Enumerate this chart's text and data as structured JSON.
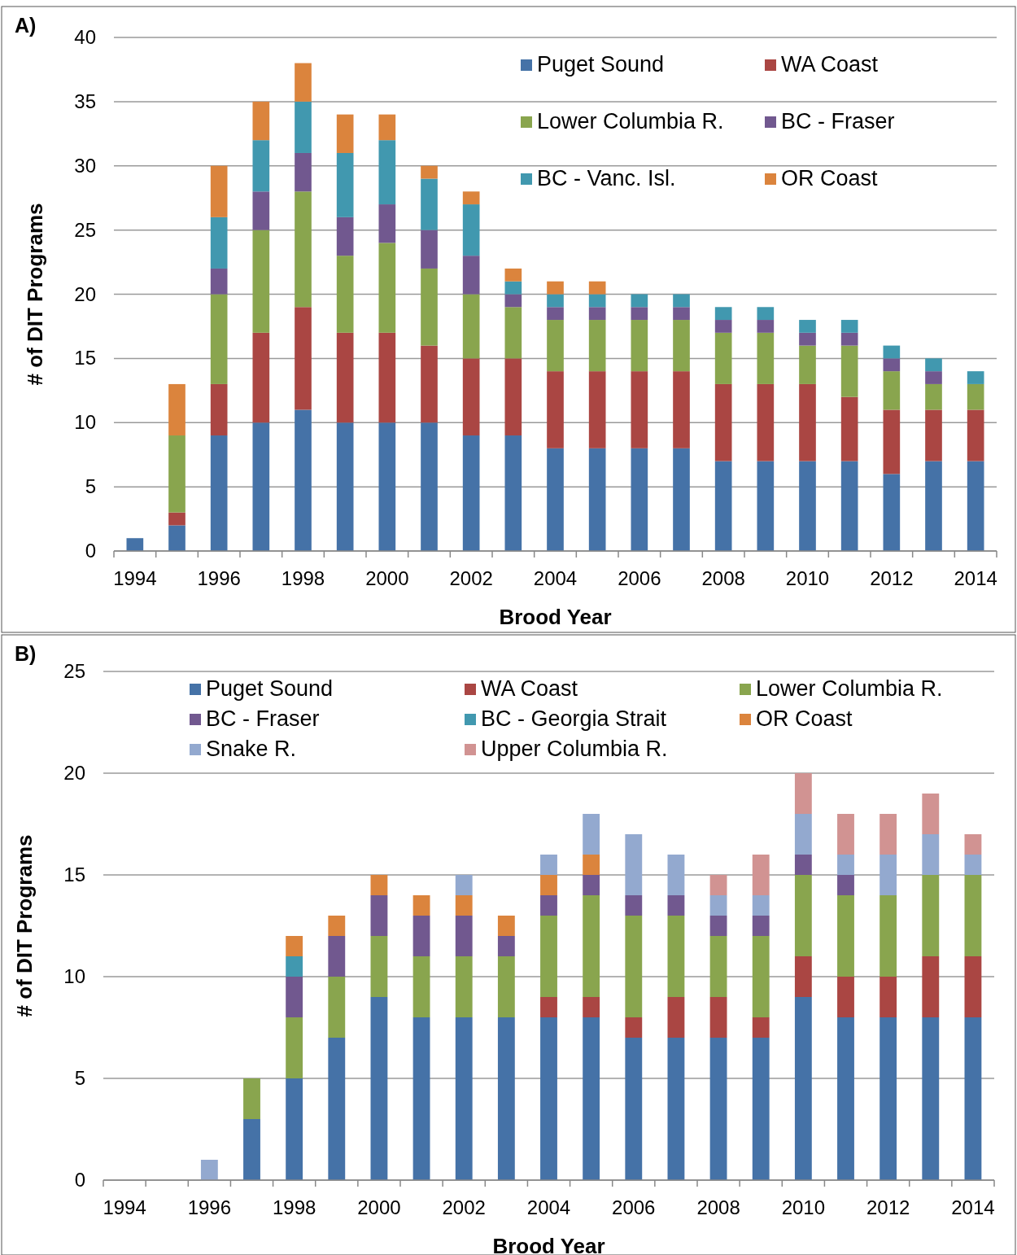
{
  "chart_data": [
    {
      "type": "bar",
      "stacked": true,
      "annotations": [
        "A)"
      ],
      "xlabel": "Brood Year",
      "ylabel": "# of DIT Programs",
      "ylim": [
        0,
        40
      ],
      "yticks": [
        0,
        5,
        10,
        15,
        20,
        25,
        30,
        35,
        40
      ],
      "grid": "y",
      "legend": "top right",
      "categories": [
        "1994",
        null,
        "1996",
        null,
        "1998",
        null,
        "2000",
        null,
        "2002",
        null,
        "2004",
        null,
        "2006",
        null,
        "2008",
        null,
        "2010",
        null,
        "2012",
        null,
        "2014"
      ],
      "series": [
        {
          "name": "Puget Sound",
          "color": "#4572a7",
          "values": [
            1,
            2,
            9,
            10,
            11,
            10,
            10,
            10,
            9,
            9,
            8,
            8,
            8,
            8,
            7,
            7,
            7,
            7,
            6,
            7,
            7
          ]
        },
        {
          "name": "WA Coast",
          "color": "#aa4643",
          "values": [
            0,
            1,
            4,
            7,
            8,
            7,
            7,
            6,
            6,
            6,
            6,
            6,
            6,
            6,
            6,
            6,
            6,
            5,
            5,
            4,
            4
          ]
        },
        {
          "name": "Lower Columbia R.",
          "color": "#89a54e",
          "values": [
            0,
            6,
            7,
            8,
            9,
            6,
            7,
            6,
            5,
            4,
            4,
            4,
            4,
            4,
            4,
            4,
            3,
            4,
            3,
            2,
            2
          ]
        },
        {
          "name": "BC - Fraser",
          "color": "#71588f",
          "values": [
            0,
            0,
            2,
            3,
            3,
            3,
            3,
            3,
            3,
            1,
            1,
            1,
            1,
            1,
            1,
            1,
            1,
            1,
            1,
            1,
            0
          ]
        },
        {
          "name": "BC - Vanc. Isl.",
          "color": "#4198af",
          "values": [
            0,
            0,
            4,
            4,
            4,
            5,
            5,
            4,
            4,
            1,
            1,
            1,
            1,
            1,
            1,
            1,
            1,
            1,
            1,
            1,
            1
          ]
        },
        {
          "name": "OR Coast",
          "color": "#db843d",
          "values": [
            0,
            4,
            4,
            3,
            3,
            3,
            2,
            1,
            1,
            1,
            1,
            1,
            0,
            0,
            0,
            0,
            0,
            0,
            0,
            0,
            0
          ]
        }
      ]
    },
    {
      "type": "bar",
      "stacked": true,
      "annotations": [
        "B)"
      ],
      "xlabel": "Brood Year",
      "ylabel": "# of DIT Programs",
      "ylim": [
        0,
        25
      ],
      "yticks": [
        0,
        5,
        10,
        15,
        20,
        25
      ],
      "grid": "y",
      "legend": "top",
      "categories": [
        "1994",
        null,
        "1996",
        null,
        "1998",
        null,
        "2000",
        null,
        "2002",
        null,
        "2004",
        null,
        "2006",
        null,
        "2008",
        null,
        "2010",
        null,
        "2012",
        null,
        "2014"
      ],
      "series": [
        {
          "name": "Puget Sound",
          "color": "#4572a7",
          "values": [
            0,
            0,
            0,
            3,
            5,
            7,
            9,
            8,
            8,
            8,
            8,
            8,
            7,
            7,
            7,
            7,
            9,
            8,
            8,
            8,
            8
          ]
        },
        {
          "name": "WA Coast",
          "color": "#aa4643",
          "values": [
            0,
            0,
            0,
            0,
            0,
            0,
            0,
            0,
            0,
            0,
            1,
            1,
            1,
            2,
            2,
            1,
            2,
            2,
            2,
            3,
            3
          ]
        },
        {
          "name": "Lower Columbia R.",
          "color": "#89a54e",
          "values": [
            0,
            0,
            0,
            2,
            3,
            3,
            3,
            3,
            3,
            3,
            4,
            5,
            5,
            4,
            3,
            4,
            4,
            4,
            4,
            4,
            4
          ]
        },
        {
          "name": "BC - Fraser",
          "color": "#71588f",
          "values": [
            0,
            0,
            0,
            0,
            2,
            2,
            2,
            2,
            2,
            1,
            1,
            1,
            1,
            1,
            1,
            1,
            1,
            1,
            0,
            0,
            0
          ]
        },
        {
          "name": "BC - Georgia Strait",
          "color": "#4198af",
          "values": [
            0,
            0,
            0,
            0,
            1,
            0,
            0,
            0,
            0,
            0,
            0,
            0,
            0,
            0,
            0,
            0,
            0,
            0,
            0,
            0,
            0
          ]
        },
        {
          "name": "OR Coast",
          "color": "#db843d",
          "values": [
            0,
            0,
            0,
            0,
            1,
            1,
            1,
            1,
            1,
            1,
            1,
            1,
            0,
            0,
            0,
            0,
            0,
            0,
            0,
            0,
            0
          ]
        },
        {
          "name": "Snake R.",
          "color": "#93a9cf",
          "values": [
            0,
            0,
            1,
            0,
            0,
            0,
            0,
            0,
            1,
            0,
            1,
            2,
            3,
            2,
            1,
            1,
            2,
            1,
            2,
            2,
            1
          ]
        },
        {
          "name": "Upper Columbia R.",
          "color": "#d19392",
          "values": [
            0,
            0,
            0,
            0,
            0,
            0,
            0,
            0,
            0,
            0,
            0,
            0,
            0,
            0,
            1,
            2,
            2,
            2,
            2,
            2,
            1
          ]
        }
      ]
    }
  ]
}
